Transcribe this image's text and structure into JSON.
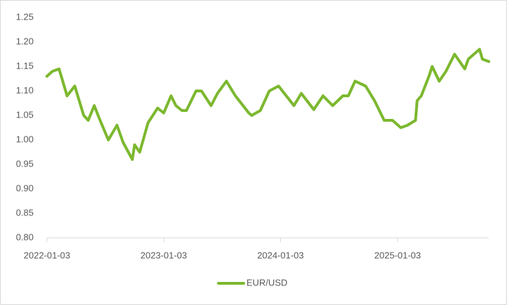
{
  "chart_data": {
    "type": "line",
    "x": [
      "2022-01-03",
      "2022-01-20",
      "2022-02-10",
      "2022-03-07",
      "2022-03-31",
      "2022-04-28",
      "2022-05-12",
      "2022-05-31",
      "2022-06-15",
      "2022-07-14",
      "2022-08-10",
      "2022-08-29",
      "2022-09-27",
      "2022-10-04",
      "2022-10-20",
      "2022-11-15",
      "2022-12-15",
      "2023-01-03",
      "2023-01-26",
      "2023-02-10",
      "2023-03-01",
      "2023-03-15",
      "2023-04-14",
      "2023-05-01",
      "2023-05-31",
      "2023-06-20",
      "2023-07-18",
      "2023-08-15",
      "2023-09-26",
      "2023-10-05",
      "2023-11-01",
      "2023-11-29",
      "2023-12-28",
      "2024-01-15",
      "2024-02-14",
      "2024-03-08",
      "2024-04-16",
      "2024-05-15",
      "2024-06-14",
      "2024-07-16",
      "2024-08-02",
      "2024-08-23",
      "2024-09-25",
      "2024-10-23",
      "2024-11-22",
      "2024-12-18",
      "2025-01-13",
      "2025-02-03",
      "2025-02-28",
      "2025-03-05",
      "2025-03-18",
      "2025-04-11",
      "2025-04-21",
      "2025-05-13",
      "2025-06-03",
      "2025-06-30",
      "2025-07-16",
      "2025-08-01",
      "2025-08-12",
      "2025-09-16",
      "2025-09-25",
      "2025-10-15"
    ],
    "series": [
      {
        "name": "EUR/USD",
        "color": "#7cb82f",
        "values": [
          1.13,
          1.14,
          1.145,
          1.09,
          1.11,
          1.05,
          1.04,
          1.07,
          1.045,
          1.0,
          1.03,
          0.995,
          0.96,
          0.99,
          0.975,
          1.035,
          1.065,
          1.055,
          1.09,
          1.07,
          1.06,
          1.06,
          1.1,
          1.1,
          1.07,
          1.095,
          1.12,
          1.09,
          1.055,
          1.05,
          1.06,
          1.1,
          1.11,
          1.095,
          1.07,
          1.095,
          1.062,
          1.09,
          1.07,
          1.09,
          1.09,
          1.12,
          1.11,
          1.08,
          1.04,
          1.04,
          1.025,
          1.03,
          1.04,
          1.08,
          1.09,
          1.13,
          1.15,
          1.12,
          1.14,
          1.175,
          1.16,
          1.145,
          1.165,
          1.185,
          1.165,
          1.16
        ]
      }
    ],
    "xlim": [
      "2022-01-03",
      "2025-10-15"
    ],
    "xticks": [
      "2022-01-03",
      "2023-01-03",
      "2024-01-03",
      "2025-01-03"
    ],
    "ylim": [
      0.8,
      1.25
    ],
    "yticks": [
      {
        "value": 0.8,
        "label": "0.80"
      },
      0.85,
      {
        "value": 0.9,
        "label": "0.90"
      },
      0.95,
      {
        "value": 1.0,
        "label": "1.00"
      },
      1.05,
      {
        "value": 1.1,
        "label": "1.10"
      },
      1.15,
      {
        "value": 1.2,
        "label": "1.20"
      },
      1.25
    ],
    "legend": "bottom"
  }
}
